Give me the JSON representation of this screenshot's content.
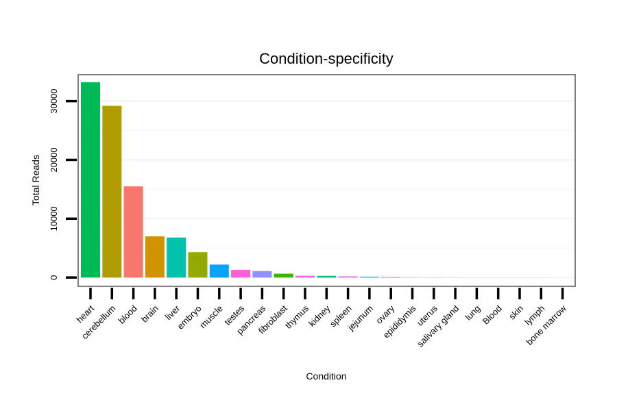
{
  "chart_data": {
    "type": "bar",
    "title": "Condition-specificity",
    "xlabel": "Condition",
    "ylabel": "Total Reads",
    "ylim": [
      -1500,
      34500
    ],
    "yticks": [
      0,
      10000,
      20000,
      30000
    ],
    "ytick_labels": [
      "0",
      "10000",
      "20000",
      "30000"
    ],
    "grid": true,
    "legend": "none",
    "categories": [
      "heart",
      "cerebellum",
      "blood",
      "brain",
      "liver",
      "embryo",
      "muscle",
      "testes",
      "pancreas",
      "fibroblast",
      "thymus",
      "kidney",
      "spleen",
      "jejunum",
      "ovary",
      "epididymis",
      "uterus",
      "salivary gland",
      "lung",
      "Blood",
      "skin",
      "lymph",
      "bone marrow"
    ],
    "values": [
      33200,
      29200,
      15500,
      7000,
      6800,
      4300,
      2200,
      1300,
      1100,
      650,
      300,
      280,
      200,
      150,
      120,
      30,
      20,
      15,
      10,
      8,
      5,
      3,
      2
    ],
    "colors": [
      "#00BA58",
      "#B09C00",
      "#F8766D",
      "#D09400",
      "#00C1AB",
      "#94AA00",
      "#06A4FF",
      "#FB61D7",
      "#8F91FF",
      "#39B600",
      "#F265E7",
      "#00BE6C",
      "#DF70F8",
      "#00B8E5",
      "#FF6C93",
      "#7CAE00",
      "#00BF7D",
      "#C99800",
      "#E7851E",
      "#00BCD8",
      "#A3A500",
      "#00B0F6",
      "#FF62BC"
    ]
  }
}
